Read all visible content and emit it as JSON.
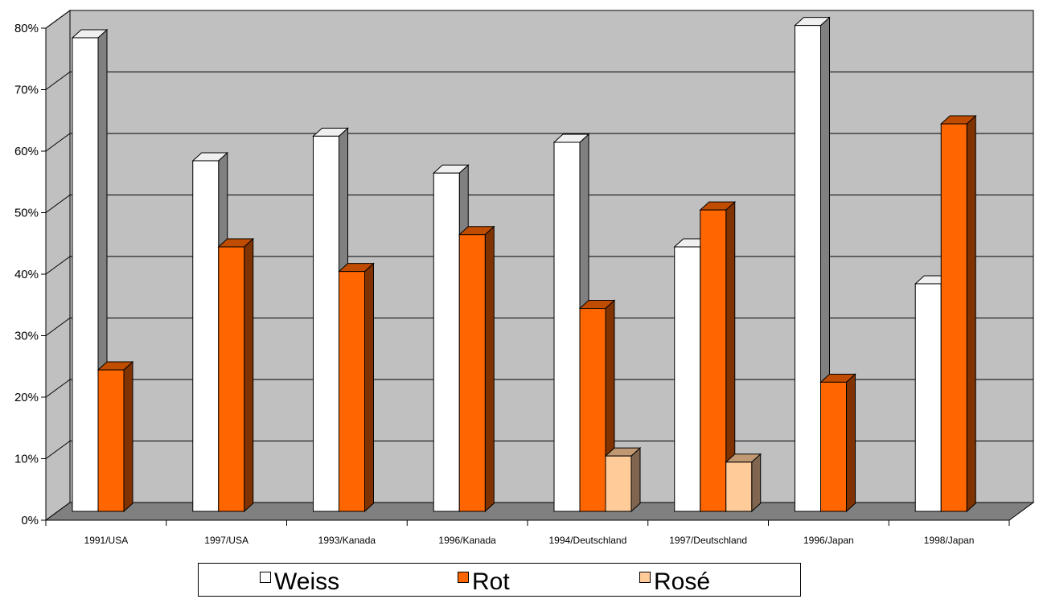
{
  "chart_data": {
    "type": "bar",
    "title": "",
    "xlabel": "",
    "ylabel": "",
    "categories": [
      "1991/USA",
      "1997/USA",
      "1993/Kanada",
      "1996/Kanada",
      "1994/Deutschland",
      "1997/Deutschland",
      "1996/Japan",
      "1998/Japan"
    ],
    "series": [
      {
        "name": "Weiss",
        "values": [
          77,
          57,
          61,
          55,
          60,
          43,
          79,
          37
        ],
        "color": "#ffffff",
        "side_color": "#808080",
        "top_color": "#f0f0f0"
      },
      {
        "name": "Rot",
        "values": [
          23,
          43,
          39,
          45,
          33,
          49,
          21,
          63
        ],
        "color": "#ff6600",
        "side_color": "#803300",
        "top_color": "#c04c00"
      },
      {
        "name": "Rosé",
        "values": [
          0,
          0,
          0,
          0,
          9,
          8,
          0,
          0
        ],
        "color": "#ffcc99",
        "side_color": "#806650",
        "top_color": "#c09973"
      }
    ],
    "yticks": [
      "0%",
      "10%",
      "20%",
      "30%",
      "40%",
      "50%",
      "60%",
      "70%",
      "80%"
    ],
    "ylim": [
      0,
      80
    ],
    "grid": true,
    "legend": "bottom",
    "wall_color": "#c0c0c0",
    "floor_color": "#808080"
  }
}
